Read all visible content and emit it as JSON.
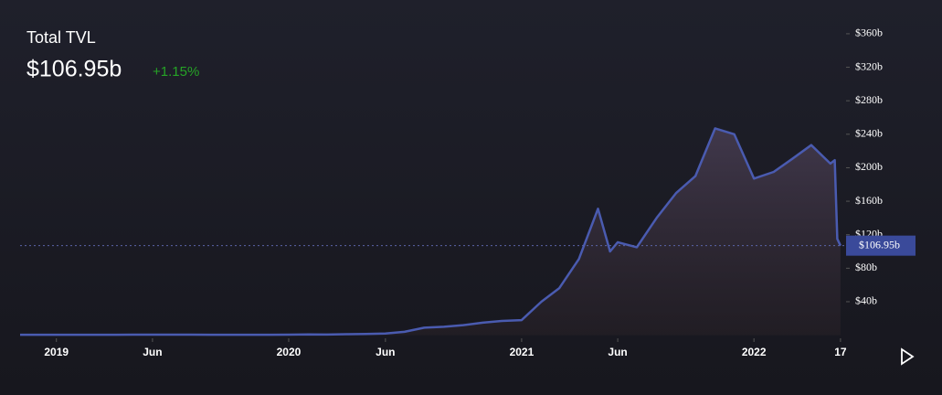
{
  "header": {
    "title": "Total TVL",
    "change": "+1.15%"
  },
  "chart_data": {
    "type": "area",
    "x": [
      "2018-11-05",
      "2018-12",
      "2019-01",
      "2019-02",
      "2019-03",
      "2019-04",
      "2019-05",
      "2019-06",
      "2019-07",
      "2019-08",
      "2019-09",
      "2019-10",
      "2019-11",
      "2019-12",
      "2020-01",
      "2020-02",
      "2020-03",
      "2020-04",
      "2020-05",
      "2020-06",
      "2020-07",
      "2020-08",
      "2020-09",
      "2020-10",
      "2020-11",
      "2020-12",
      "2021-01",
      "2021-02",
      "2021-03",
      "2021-04",
      "2021-05",
      "2021-05-20",
      "2021-06",
      "2021-07",
      "2021-08",
      "2021-09",
      "2021-10",
      "2021-11",
      "2021-12",
      "2022-01",
      "2022-02",
      "2022-03",
      "2022-04",
      "2022-05",
      "2022-05-08",
      "2022-05-12",
      "2022-05-17"
    ],
    "series": [
      {
        "name": "Total TVL",
        "color": "#4a5bb0",
        "values": [
          0.5,
          0.5,
          0.5,
          0.6,
          0.6,
          0.6,
          0.7,
          0.7,
          0.7,
          0.7,
          0.6,
          0.6,
          0.6,
          0.6,
          0.7,
          1,
          0.8,
          1.2,
          1.5,
          2,
          4,
          9,
          10,
          12,
          15,
          17,
          18,
          40,
          56,
          91,
          151,
          100,
          111,
          105,
          140,
          170,
          190,
          247,
          240,
          187,
          195,
          210,
          227,
          205,
          209,
          115,
          106.95
        ]
      }
    ],
    "xlim": [
      "2018-11-05",
      "2022-05-20"
    ],
    "xticks": [
      {
        "value": "2019-01",
        "label": "2019"
      },
      {
        "value": "2019-06",
        "label": "Jun"
      },
      {
        "value": "2020-01",
        "label": "2020"
      },
      {
        "value": "2020-06",
        "label": "Jun"
      },
      {
        "value": "2021-01",
        "label": "2021"
      },
      {
        "value": "2021-06",
        "label": "Jun"
      },
      {
        "value": "2022-01",
        "label": "2022"
      },
      {
        "value": "2022-05-17",
        "label": "17"
      }
    ],
    "ylim": [
      0,
      380
    ],
    "yticks": [
      {
        "value": 40,
        "label": "$40b"
      },
      {
        "value": 80,
        "label": "$80b"
      },
      {
        "value": 120,
        "label": "$120b"
      },
      {
        "value": 160,
        "label": "$160b"
      },
      {
        "value": 200,
        "label": "$200b"
      },
      {
        "value": 240,
        "label": "$240b"
      },
      {
        "value": 280,
        "label": "$280b"
      },
      {
        "value": 320,
        "label": "$320b"
      },
      {
        "value": 360,
        "label": "$360b"
      }
    ],
    "reference_line": {
      "value": 106.95,
      "label": "$106.95b"
    }
  }
}
